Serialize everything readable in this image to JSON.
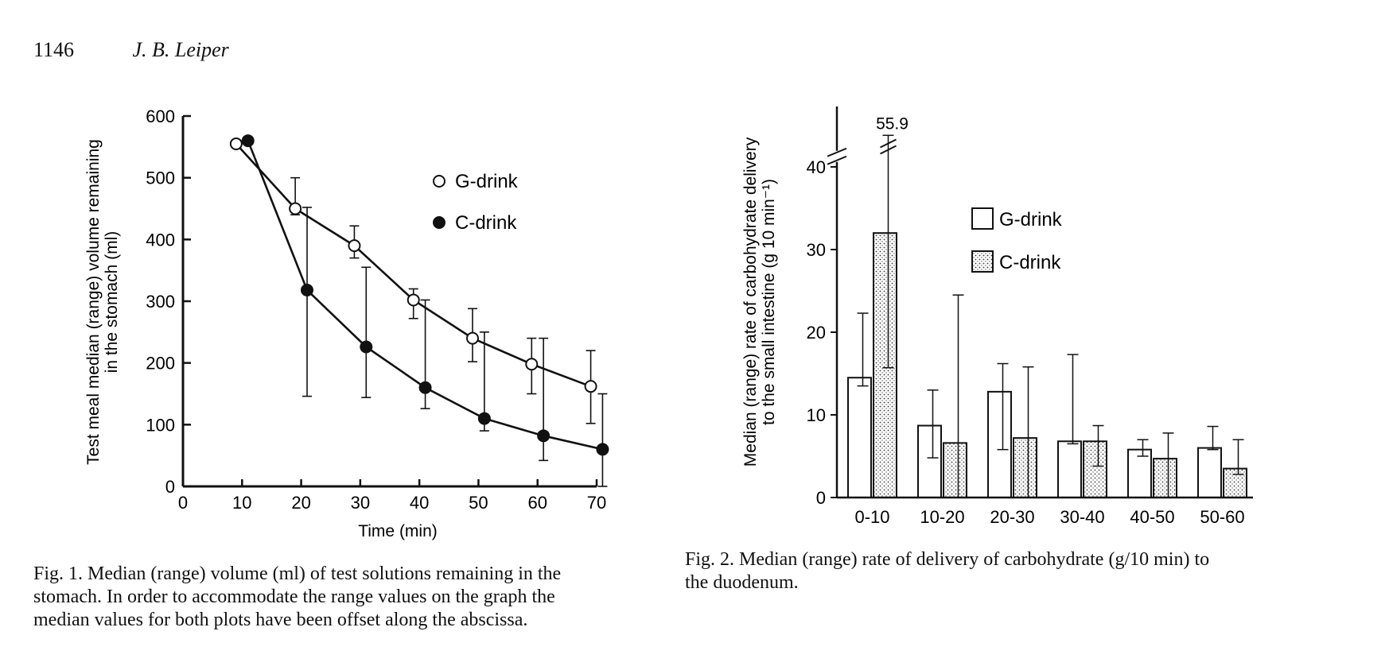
{
  "header": {
    "page_number": "1146",
    "author": "J. B. Leiper"
  },
  "captions": {
    "fig1": [
      "Fig. 1. Median (range) volume (ml) of test solutions remaining in the",
      "stomach. In order to accommodate the range values on the graph the",
      "median values for both plots have been offset along the abscissa."
    ],
    "fig2": [
      "Fig. 2. Median (range) rate of delivery of carbohydrate (g/10 min) to",
      "the duodenum."
    ]
  },
  "chart_data": [
    {
      "type": "line",
      "xlabel": "Time (min)",
      "ylabel": "Test meal median (range) volume remaining",
      "ylabel2": "in the stomach (ml)",
      "xlim": [
        0,
        70
      ],
      "ylim": [
        0,
        600
      ],
      "xticks": [
        "0",
        "10",
        "20",
        "30",
        "40",
        "50",
        "60",
        "70"
      ],
      "yticks": [
        "0",
        "100",
        "200",
        "300",
        "400",
        "500",
        "600"
      ],
      "legend_position": "top-right",
      "series": [
        {
          "name": "G-drink",
          "marker": "open-circle",
          "x": [
            9,
            19,
            29,
            39,
            49,
            59,
            69
          ],
          "y": [
            555,
            450,
            390,
            302,
            240,
            198,
            162
          ],
          "range_low": [
            555,
            440,
            370,
            272,
            202,
            150,
            102
          ],
          "range_high": [
            555,
            500,
            422,
            320,
            288,
            240,
            220
          ]
        },
        {
          "name": "C-drink",
          "marker": "filled-circle",
          "x": [
            11,
            21,
            31,
            41,
            51,
            61,
            71
          ],
          "y": [
            560,
            318,
            226,
            160,
            110,
            82,
            60
          ],
          "range_low": [
            560,
            146,
            144,
            126,
            90,
            42,
            0
          ],
          "range_high": [
            560,
            452,
            355,
            302,
            250,
            240,
            150
          ]
        }
      ]
    },
    {
      "type": "bar",
      "ylabel": "Median (range) rate of carbohydrate delivery",
      "ylabel2": "to the small intestine (g 10 min⁻¹)",
      "ylim": [
        0,
        40
      ],
      "axis_break": true,
      "yticks": [
        "0",
        "10",
        "20",
        "30",
        "40"
      ],
      "categories": [
        "0-10",
        "10-20",
        "20-30",
        "30-40",
        "40-50",
        "50-60"
      ],
      "legend_position": "top-right",
      "annotation": "55.9",
      "series": [
        {
          "name": "G-drink",
          "fill": "white",
          "values": [
            14.5,
            8.7,
            12.8,
            6.8,
            5.8,
            6.0
          ],
          "range_low": [
            13.5,
            4.8,
            5.8,
            6.5,
            5.0,
            5.8
          ],
          "range_high": [
            22.3,
            13.0,
            16.2,
            17.3,
            7.0,
            8.6
          ]
        },
        {
          "name": "C-drink",
          "fill": "stippled",
          "values": [
            32.0,
            6.6,
            7.2,
            6.8,
            4.7,
            3.5
          ],
          "range_low": [
            15.7,
            0.0,
            0.0,
            3.8,
            0.0,
            2.8
          ],
          "range_high": [
            55.9,
            24.5,
            15.8,
            8.7,
            7.8,
            7.0
          ]
        }
      ]
    }
  ]
}
